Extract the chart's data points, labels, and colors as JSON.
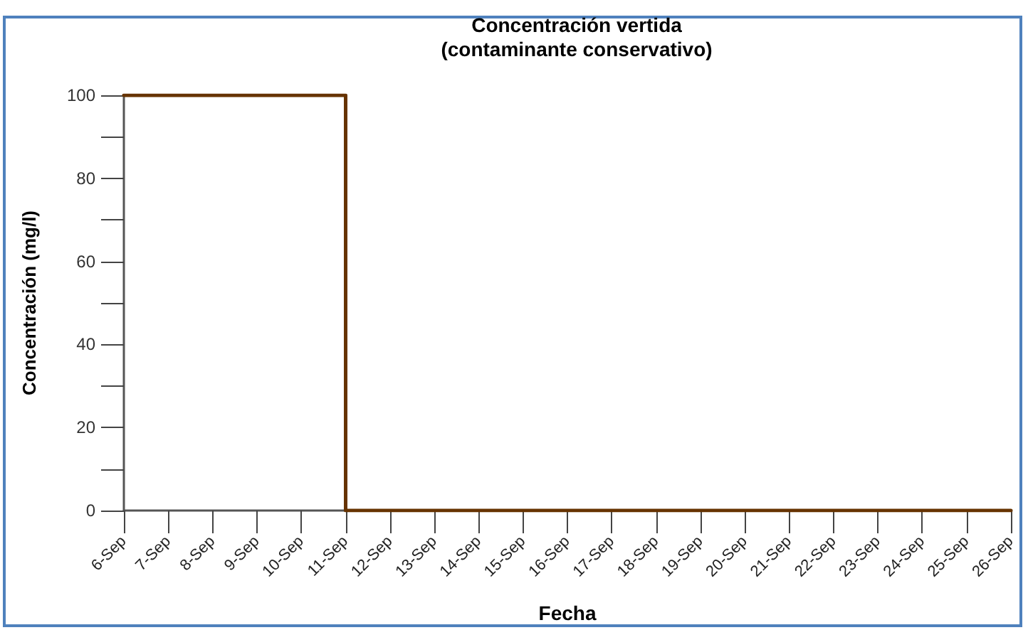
{
  "chart_data": {
    "type": "line",
    "title": "Concentración vertida\n(contaminante conservativo)",
    "xlabel": "Fecha",
    "ylabel": "Concentración (mg/l)",
    "x": [
      "--09-06",
      "--09-11",
      "--09-11",
      "--09-11",
      "--09-11",
      "--09-26"
    ],
    "series": [
      {
        "color": "#663300",
        "values": [
          100,
          100,
          75,
          25,
          0,
          0
        ]
      }
    ],
    "xlim": [
      "--09-06",
      "--09-26"
    ],
    "xticks": [
      {
        "value": "--09-06",
        "label": "6-Sep"
      },
      {
        "value": "--09-07",
        "label": "7-Sep"
      },
      {
        "value": "--09-08",
        "label": "8-Sep"
      },
      {
        "value": "--09-09",
        "label": "9-Sep"
      },
      {
        "value": "--09-10",
        "label": "10-Sep"
      },
      {
        "value": "--09-11",
        "label": "11-Sep"
      },
      {
        "value": "--09-12",
        "label": "12-Sep"
      },
      {
        "value": "--09-13",
        "label": "13-Sep"
      },
      {
        "value": "--09-14",
        "label": "14-Sep"
      },
      {
        "value": "--09-15",
        "label": "15-Sep"
      },
      {
        "value": "--09-16",
        "label": "16-Sep"
      },
      {
        "value": "--09-17",
        "label": "17-Sep"
      },
      {
        "value": "--09-18",
        "label": "18-Sep"
      },
      {
        "value": "--09-19",
        "label": "19-Sep"
      },
      {
        "value": "--09-20",
        "label": "20-Sep"
      },
      {
        "value": "--09-21",
        "label": "21-Sep"
      },
      {
        "value": "--09-22",
        "label": "22-Sep"
      },
      {
        "value": "--09-23",
        "label": "23-Sep"
      },
      {
        "value": "--09-24",
        "label": "24-Sep"
      },
      {
        "value": "--09-25",
        "label": "25-Sep"
      },
      {
        "value": "--09-26",
        "label": "26-Sep"
      }
    ],
    "ylim": [
      0,
      100
    ],
    "yticks": [
      0,
      {
        "value": 10,
        "label": null
      },
      20,
      {
        "value": 30,
        "label": null
      },
      40,
      {
        "value": 50,
        "label": null
      },
      60,
      {
        "value": 70,
        "label": null
      },
      80,
      {
        "value": 90,
        "label": null
      },
      100
    ],
    "grid": false,
    "marker": "none",
    "line_style": "solid"
  }
}
